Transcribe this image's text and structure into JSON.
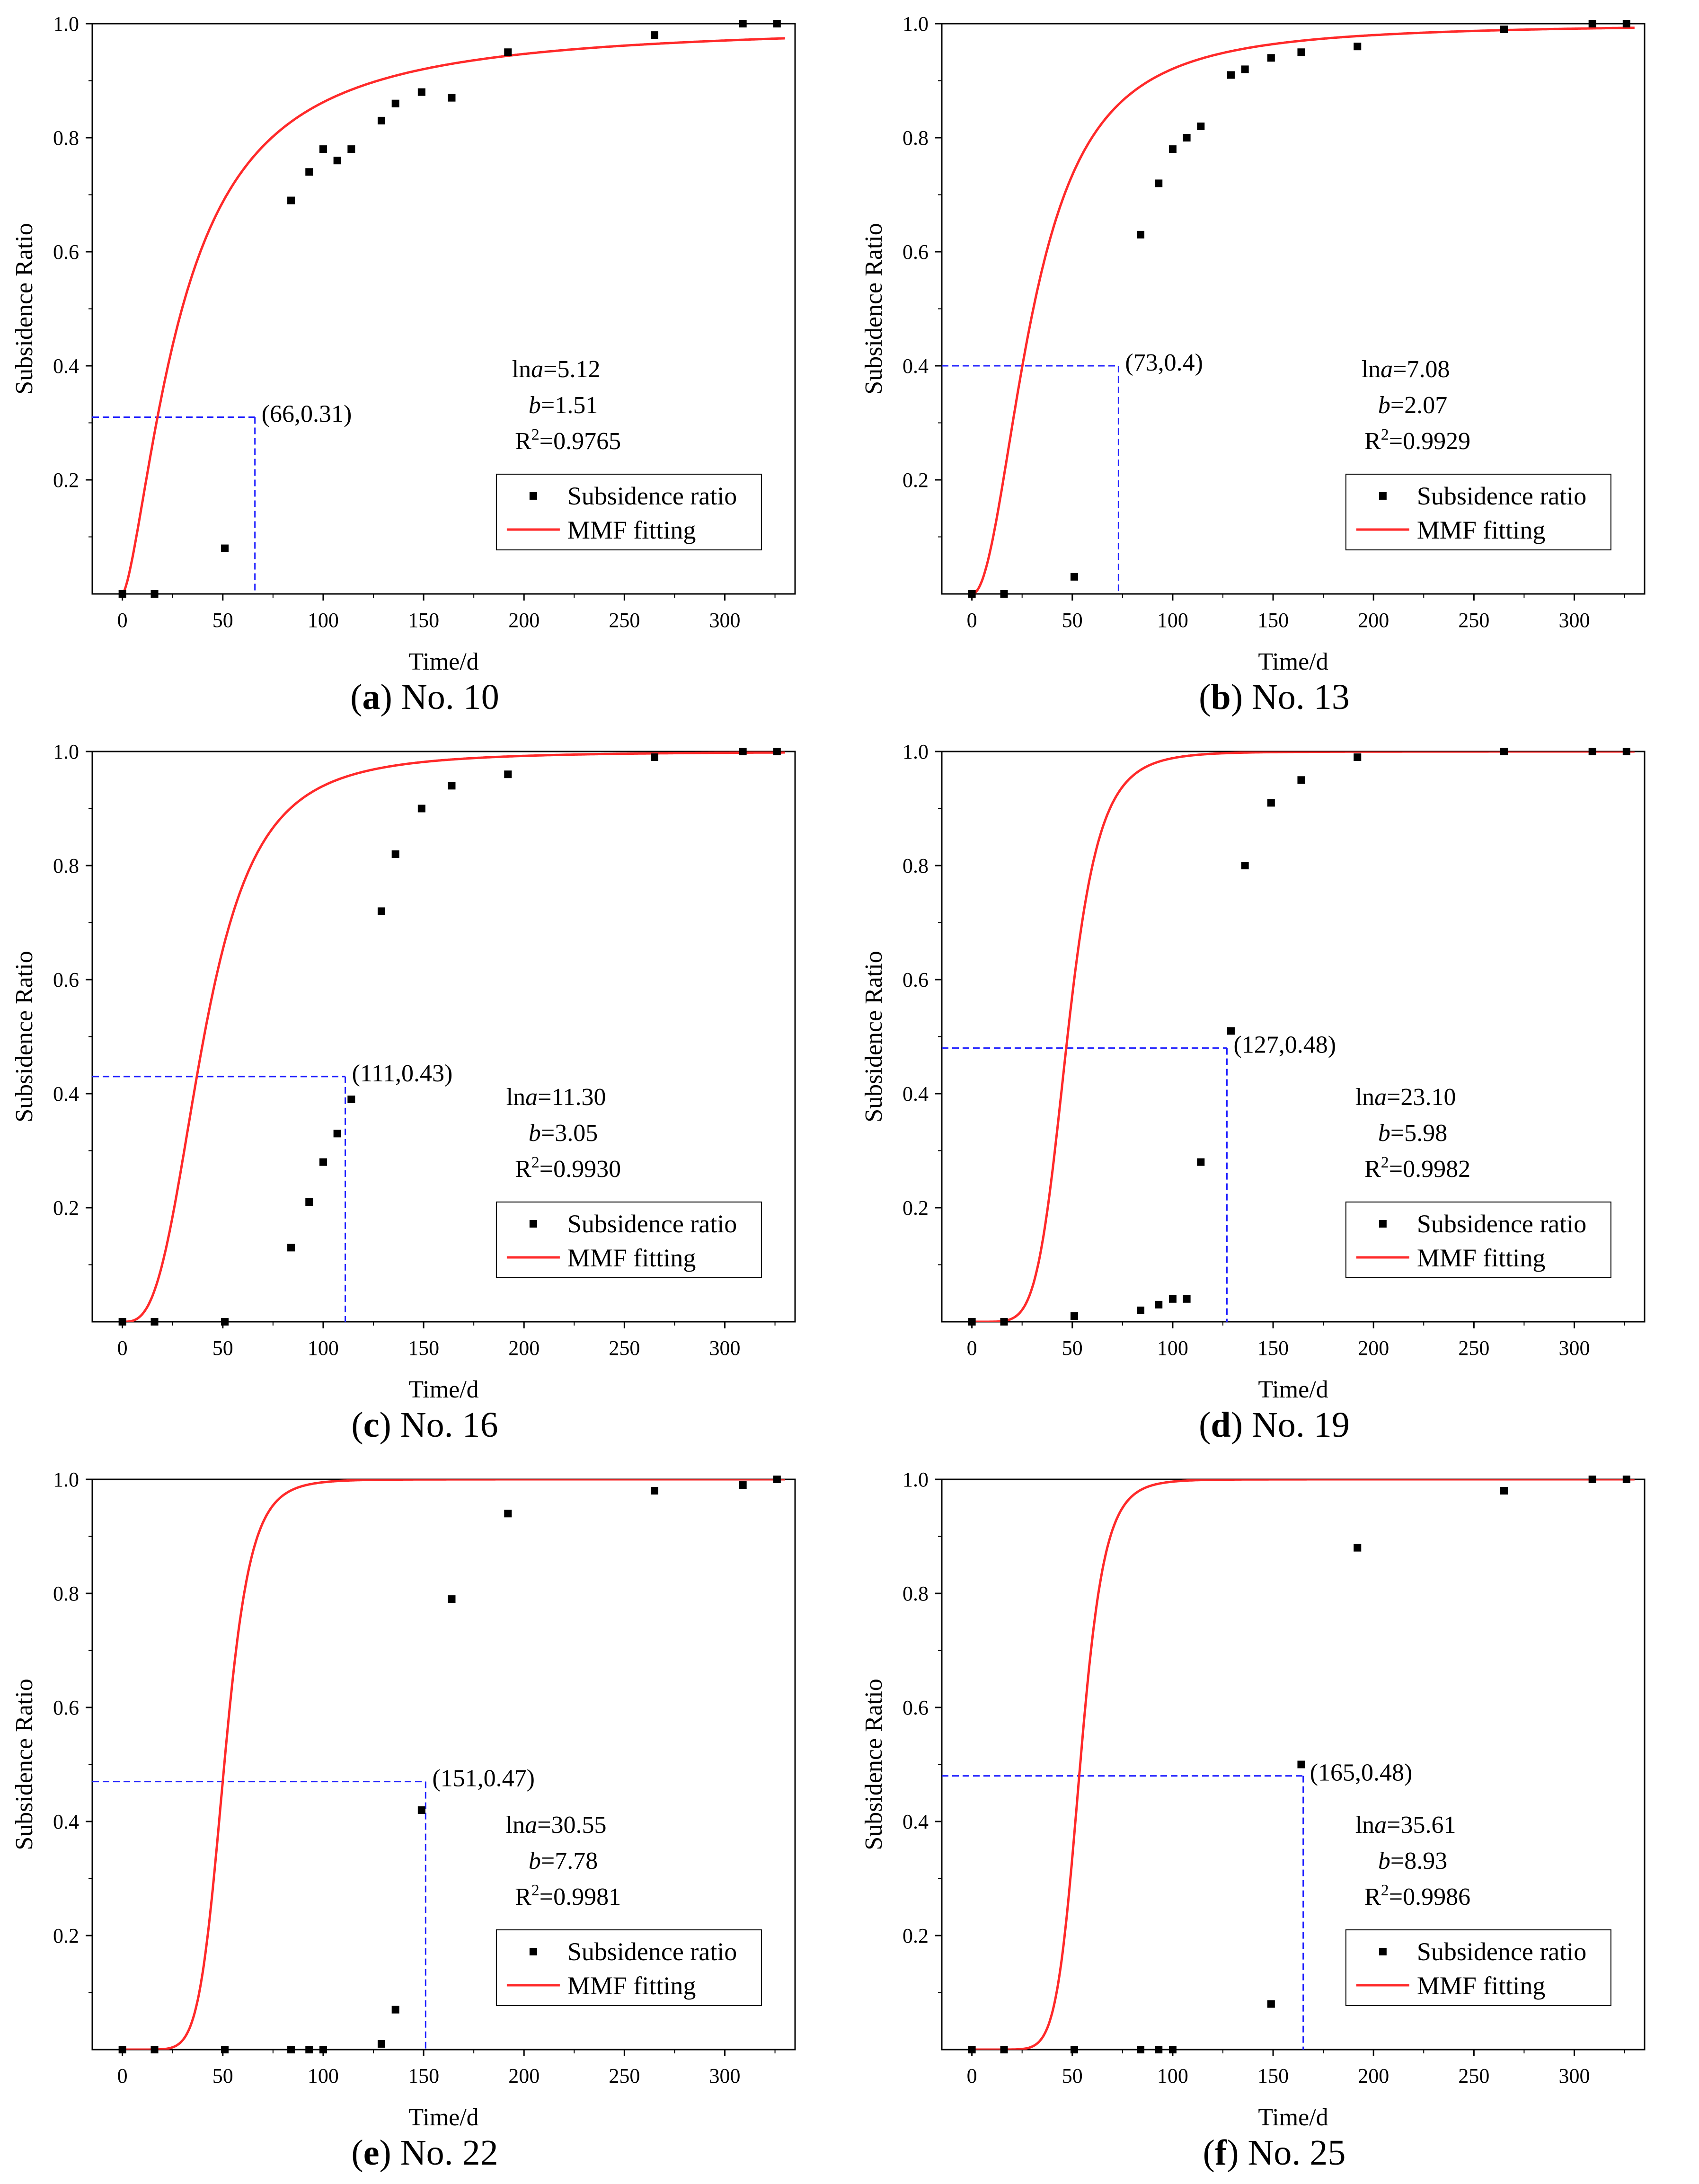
{
  "figure": {
    "panels": [
      {
        "label": "a",
        "caption": "No. 10"
      },
      {
        "label": "b",
        "caption": "No. 13"
      },
      {
        "label": "c",
        "caption": "No. 16"
      },
      {
        "label": "d",
        "caption": "No. 19"
      },
      {
        "label": "e",
        "caption": "No. 22"
      },
      {
        "label": "f",
        "caption": "No. 25"
      }
    ],
    "colors": {
      "data": "#000000",
      "fit": "#ff2a2a",
      "guide": "#2020ff",
      "axis": "#000000"
    }
  },
  "chart_data": [
    {
      "type": "scatter",
      "title": "No. 10",
      "xlabel": "Time/d",
      "ylabel": "Subsidence Ratio",
      "xlim": [
        -15,
        335
      ],
      "ylim": [
        0,
        1.0
      ],
      "xticks": [
        0,
        50,
        100,
        150,
        200,
        250,
        300
      ],
      "yticks": [
        0.2,
        0.4,
        0.6,
        0.8,
        1.0
      ],
      "legend": {
        "position": "bottom-right",
        "entries": [
          "Subsidence ratio",
          "MMF fitting"
        ]
      },
      "series": [
        {
          "name": "Subsidence ratio",
          "x": [
            0,
            16,
            51,
            84,
            93,
            100,
            107,
            114,
            129,
            136,
            149,
            164,
            192,
            265,
            309,
            326
          ],
          "y": [
            0.0,
            0.0,
            0.08,
            0.69,
            0.74,
            0.78,
            0.76,
            0.78,
            0.83,
            0.86,
            0.88,
            0.87,
            0.95,
            0.98,
            1.0,
            1.0
          ]
        },
        {
          "name": "MMF fitting",
          "model": "y = 1/(1+exp(lna - b*ln(t)))",
          "lna": 5.12,
          "b": 1.51
        }
      ],
      "marker": {
        "x": 66,
        "y": 0.31,
        "label": "(66,0.31)"
      },
      "params": {
        "lna": "lna=5.12",
        "b": "b=1.51",
        "r2": "R2=0.9765"
      }
    },
    {
      "type": "scatter",
      "title": "No. 13",
      "xlabel": "Time/d",
      "ylabel": "Subsidence Ratio",
      "xlim": [
        -15,
        335
      ],
      "ylim": [
        0,
        1.0
      ],
      "xticks": [
        0,
        50,
        100,
        150,
        200,
        250,
        300
      ],
      "yticks": [
        0.2,
        0.4,
        0.6,
        0.8,
        1.0
      ],
      "legend": {
        "position": "bottom-right",
        "entries": [
          "Subsidence ratio",
          "MMF fitting"
        ]
      },
      "series": [
        {
          "name": "Subsidence ratio",
          "x": [
            0,
            16,
            51,
            84,
            93,
            100,
            107,
            114,
            129,
            136,
            149,
            164,
            192,
            265,
            309,
            326
          ],
          "y": [
            0.0,
            0.0,
            0.03,
            0.63,
            0.72,
            0.78,
            0.8,
            0.82,
            0.91,
            0.92,
            0.94,
            0.95,
            0.96,
            0.99,
            1.0,
            1.0
          ]
        },
        {
          "name": "MMF fitting",
          "model": "y = 1/(1+exp(lna - b*ln(t)))",
          "lna": 7.08,
          "b": 2.07
        }
      ],
      "marker": {
        "x": 73,
        "y": 0.4,
        "label": "(73,0.4)"
      },
      "params": {
        "lna": "lna=7.08",
        "b": "b=2.07",
        "r2": "R2=0.9929"
      }
    },
    {
      "type": "scatter",
      "title": "No. 16",
      "xlabel": "Time/d",
      "ylabel": "Subsidence Ratio",
      "xlim": [
        -15,
        335
      ],
      "ylim": [
        0,
        1.0
      ],
      "xticks": [
        0,
        50,
        100,
        150,
        200,
        250,
        300
      ],
      "yticks": [
        0.2,
        0.4,
        0.6,
        0.8,
        1.0
      ],
      "legend": {
        "position": "bottom-right",
        "entries": [
          "Subsidence ratio",
          "MMF fitting"
        ]
      },
      "series": [
        {
          "name": "Subsidence ratio",
          "x": [
            0,
            16,
            51,
            84,
            93,
            100,
            107,
            114,
            129,
            136,
            149,
            164,
            192,
            265,
            309,
            326
          ],
          "y": [
            0.0,
            0.0,
            0.0,
            0.13,
            0.21,
            0.28,
            0.33,
            0.39,
            0.72,
            0.82,
            0.9,
            0.94,
            0.96,
            0.99,
            1.0,
            1.0
          ]
        },
        {
          "name": "MMF fitting",
          "model": "y = 1/(1+exp(lna - b*ln(t)))",
          "lna": 11.3,
          "b": 3.05
        }
      ],
      "marker": {
        "x": 111,
        "y": 0.43,
        "label": "(111,0.43)"
      },
      "params": {
        "lna": "lna=11.30",
        "b": "b=3.05",
        "r2": "R2=0.9930"
      }
    },
    {
      "type": "scatter",
      "title": "No. 19",
      "xlabel": "Time/d",
      "ylabel": "Subsidence Ratio",
      "xlim": [
        -15,
        335
      ],
      "ylim": [
        0,
        1.0
      ],
      "xticks": [
        0,
        50,
        100,
        150,
        200,
        250,
        300
      ],
      "yticks": [
        0.2,
        0.4,
        0.6,
        0.8,
        1.0
      ],
      "legend": {
        "position": "bottom-right",
        "entries": [
          "Subsidence ratio",
          "MMF fitting"
        ]
      },
      "series": [
        {
          "name": "Subsidence ratio",
          "x": [
            0,
            16,
            51,
            84,
            93,
            100,
            107,
            114,
            129,
            136,
            149,
            164,
            192,
            265,
            309,
            326
          ],
          "y": [
            0.0,
            0.0,
            0.01,
            0.02,
            0.03,
            0.04,
            0.04,
            0.28,
            0.51,
            0.8,
            0.91,
            0.95,
            0.99,
            1.0,
            1.0,
            1.0
          ]
        },
        {
          "name": "MMF fitting",
          "model": "y = 1/(1+exp(lna - b*ln(t)))",
          "lna": 23.1,
          "b": 5.98
        }
      ],
      "marker": {
        "x": 127,
        "y": 0.48,
        "label": "(127,0.48)"
      },
      "params": {
        "lna": "lna=23.10",
        "b": "b=5.98",
        "r2": "R2=0.9982"
      }
    },
    {
      "type": "scatter",
      "title": "No. 22",
      "xlabel": "Time/d",
      "ylabel": "Subsidence Ratio",
      "xlim": [
        -15,
        335
      ],
      "ylim": [
        0,
        1.0
      ],
      "xticks": [
        0,
        50,
        100,
        150,
        200,
        250,
        300
      ],
      "yticks": [
        0.2,
        0.4,
        0.6,
        0.8,
        1.0
      ],
      "legend": {
        "position": "bottom-right",
        "entries": [
          "Subsidence ratio",
          "MMF fitting"
        ]
      },
      "series": [
        {
          "name": "Subsidence ratio",
          "x": [
            0,
            16,
            51,
            84,
            93,
            100,
            129,
            136,
            149,
            164,
            192,
            265,
            309,
            326
          ],
          "y": [
            0.0,
            0.0,
            0.0,
            0.0,
            0.0,
            0.0,
            0.01,
            0.07,
            0.42,
            0.79,
            0.94,
            0.98,
            0.99,
            1.0
          ]
        },
        {
          "name": "MMF fitting",
          "model": "y = 1/(1+exp(lna - b*ln(t)))",
          "lna": 30.55,
          "b": 7.78
        }
      ],
      "marker": {
        "x": 151,
        "y": 0.47,
        "label": "(151,0.47)"
      },
      "params": {
        "lna": "lna=30.55",
        "b": "b=7.78",
        "r2": "R2=0.9981"
      }
    },
    {
      "type": "scatter",
      "title": "No. 25",
      "xlabel": "Time/d",
      "ylabel": "Subsidence Ratio",
      "xlim": [
        -15,
        335
      ],
      "ylim": [
        0,
        1.0
      ],
      "xticks": [
        0,
        50,
        100,
        150,
        200,
        250,
        300
      ],
      "yticks": [
        0.2,
        0.4,
        0.6,
        0.8,
        1.0
      ],
      "legend": {
        "position": "bottom-right",
        "entries": [
          "Subsidence ratio",
          "MMF fitting"
        ]
      },
      "series": [
        {
          "name": "Subsidence ratio",
          "x": [
            0,
            16,
            51,
            84,
            93,
            100,
            149,
            164,
            192,
            265,
            309,
            326
          ],
          "y": [
            0.0,
            0.0,
            0.0,
            0.0,
            0.0,
            0.0,
            0.08,
            0.5,
            0.88,
            0.98,
            1.0,
            1.0
          ]
        },
        {
          "name": "MMF fitting",
          "model": "y = 1/(1+exp(lna - b*ln(t)))",
          "lna": 35.61,
          "b": 8.93
        }
      ],
      "marker": {
        "x": 165,
        "y": 0.48,
        "label": "(165,0.48)"
      },
      "params": {
        "lna": "lna=35.61",
        "b": "b=8.93",
        "r2": "R2=0.9986"
      }
    }
  ]
}
